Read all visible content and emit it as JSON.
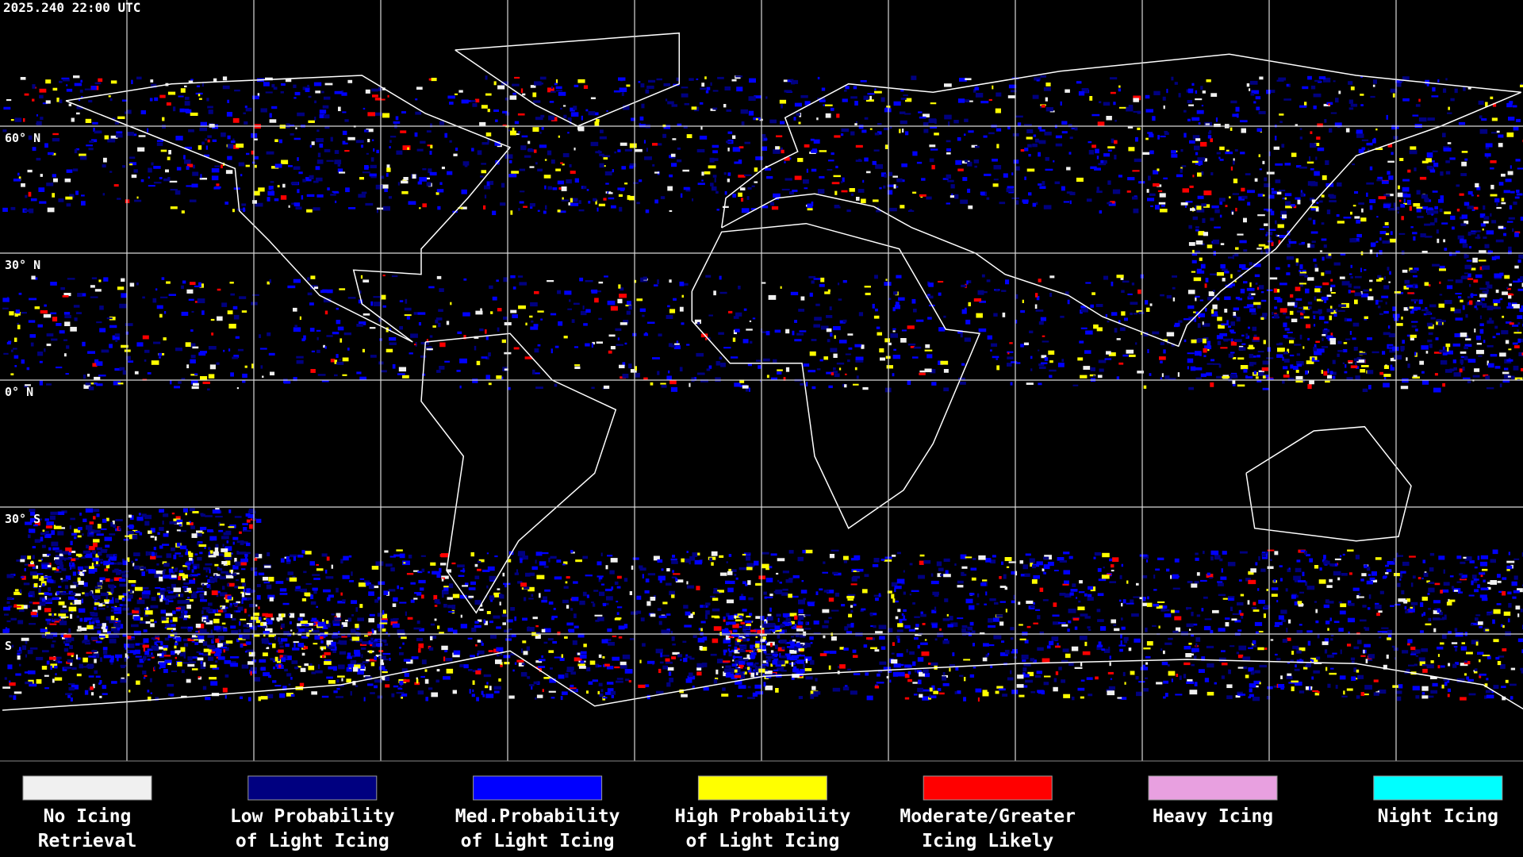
{
  "header": {
    "timestamp": "2025.240 22:00 UTC"
  },
  "map": {
    "latitude_labels": [
      "60° N",
      "30° N",
      "0° N",
      "30° S",
      "S"
    ]
  },
  "legend": {
    "items": [
      {
        "label": [
          "No Icing",
          "Retrieval"
        ],
        "color": "#f0f0f0"
      },
      {
        "label": [
          "Low Probability",
          "of Light Icing"
        ],
        "color": "#000080"
      },
      {
        "label": [
          "Med.Probability",
          "of Light Icing"
        ],
        "color": "#0000ff"
      },
      {
        "label": [
          "High Probability",
          "of Light Icing"
        ],
        "color": "#ffff00"
      },
      {
        "label": [
          "Moderate/Greater",
          "Icing Likely"
        ],
        "color": "#ff0000"
      },
      {
        "label": [
          "Heavy Icing",
          ""
        ],
        "color": "#e8a0e0"
      },
      {
        "label": [
          "Night Icing",
          ""
        ],
        "color": "#00ffff"
      }
    ]
  }
}
